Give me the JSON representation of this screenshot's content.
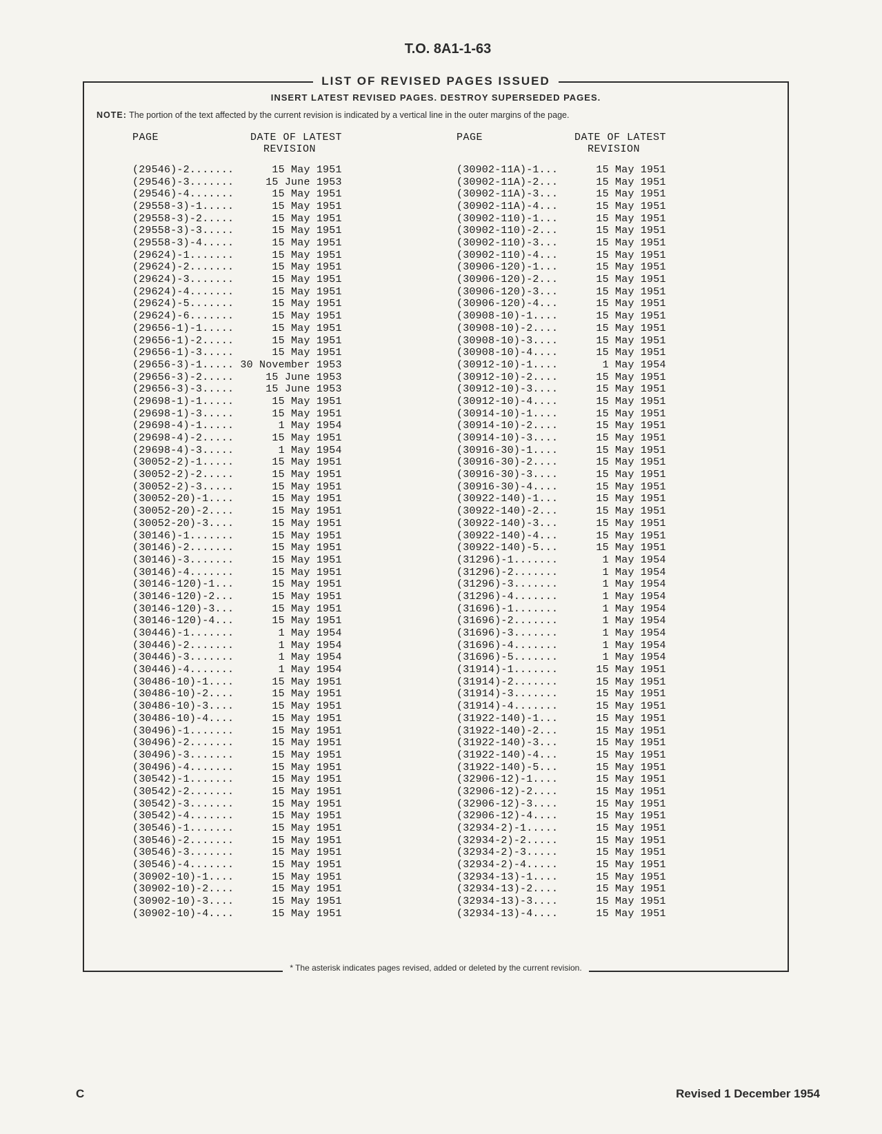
{
  "doc_id": "T.O. 8A1-1-63",
  "box_title": "LIST OF REVISED PAGES ISSUED",
  "subtitle": "INSERT LATEST REVISED PAGES. DESTROY SUPERSEDED PAGES.",
  "note_label": "NOTE:",
  "note_text": "The portion of the text affected by the current revision is indicated by a vertical line in the outer margins of the page.",
  "col_header_page": "PAGE",
  "col_header_date": "DATE OF LATEST\nREVISION",
  "footnote": "* The asterisk indicates pages revised, added or deleted by the current revision.",
  "page_letter": "C",
  "revised": "Revised 1 December 1954",
  "left_rows": [
    {
      "p": "(29546)-2",
      "d": "15 May 1951"
    },
    {
      "p": "(29546)-3",
      "d": "15 June 1953"
    },
    {
      "p": "(29546)-4",
      "d": "15 May 1951"
    },
    {
      "p": "(29558-3)-1",
      "d": "15 May 1951"
    },
    {
      "p": "(29558-3)-2",
      "d": "15 May 1951"
    },
    {
      "p": "(29558-3)-3",
      "d": "15 May 1951"
    },
    {
      "p": "(29558-3)-4",
      "d": "15 May 1951"
    },
    {
      "p": "(29624)-1",
      "d": "15 May 1951"
    },
    {
      "p": "(29624)-2",
      "d": "15 May 1951"
    },
    {
      "p": "(29624)-3",
      "d": "15 May 1951"
    },
    {
      "p": "(29624)-4",
      "d": "15 May 1951"
    },
    {
      "p": "(29624)-5",
      "d": "15 May 1951"
    },
    {
      "p": "(29624)-6",
      "d": "15 May 1951"
    },
    {
      "p": "(29656-1)-1",
      "d": "15 May 1951"
    },
    {
      "p": "(29656-1)-2",
      "d": "15 May 1951"
    },
    {
      "p": "(29656-1)-3",
      "d": "15 May 1951"
    },
    {
      "p": "(29656-3)-1",
      "d": "30 November 1953"
    },
    {
      "p": "(29656-3)-2",
      "d": "15 June 1953"
    },
    {
      "p": "(29656-3)-3",
      "d": "15 June 1953"
    },
    {
      "p": "(29698-1)-1",
      "d": "15 May 1951"
    },
    {
      "p": "(29698-1)-3",
      "d": "15 May 1951"
    },
    {
      "p": "(29698-4)-1",
      "d": "1 May 1954"
    },
    {
      "p": "(29698-4)-2",
      "d": "15 May 1951"
    },
    {
      "p": "(29698-4)-3",
      "d": "1 May 1954"
    },
    {
      "p": "(30052-2)-1",
      "d": "15 May 1951"
    },
    {
      "p": "(30052-2)-2",
      "d": "15 May 1951"
    },
    {
      "p": "(30052-2)-3",
      "d": "15 May 1951"
    },
    {
      "p": "(30052-20)-1",
      "d": "15 May 1951"
    },
    {
      "p": "(30052-20)-2",
      "d": "15 May 1951"
    },
    {
      "p": "(30052-20)-3",
      "d": "15 May 1951"
    },
    {
      "p": "(30146)-1",
      "d": "15 May 1951"
    },
    {
      "p": "(30146)-2",
      "d": "15 May 1951"
    },
    {
      "p": "(30146)-3",
      "d": "15 May 1951"
    },
    {
      "p": "(30146)-4",
      "d": "15 May 1951"
    },
    {
      "p": "(30146-120)-1",
      "d": "15 May 1951"
    },
    {
      "p": "(30146-120)-2",
      "d": "15 May 1951"
    },
    {
      "p": "(30146-120)-3",
      "d": "15 May 1951"
    },
    {
      "p": "(30146-120)-4",
      "d": "15 May 1951"
    },
    {
      "p": "(30446)-1",
      "d": "1 May 1954"
    },
    {
      "p": "(30446)-2",
      "d": "1 May 1954"
    },
    {
      "p": "(30446)-3",
      "d": "1 May 1954"
    },
    {
      "p": "(30446)-4",
      "d": "1 May 1954"
    },
    {
      "p": "(30486-10)-1",
      "d": "15 May 1951"
    },
    {
      "p": "(30486-10)-2",
      "d": "15 May 1951"
    },
    {
      "p": "(30486-10)-3",
      "d": "15 May 1951"
    },
    {
      "p": "(30486-10)-4",
      "d": "15 May 1951"
    },
    {
      "p": "(30496)-1",
      "d": "15 May 1951"
    },
    {
      "p": "(30496)-2",
      "d": "15 May 1951"
    },
    {
      "p": "(30496)-3",
      "d": "15 May 1951"
    },
    {
      "p": "(30496)-4",
      "d": "15 May 1951"
    },
    {
      "p": "(30542)-1",
      "d": "15 May 1951"
    },
    {
      "p": "(30542)-2",
      "d": "15 May 1951"
    },
    {
      "p": "(30542)-3",
      "d": "15 May 1951"
    },
    {
      "p": "(30542)-4",
      "d": "15 May 1951"
    },
    {
      "p": "(30546)-1",
      "d": "15 May 1951"
    },
    {
      "p": "(30546)-2",
      "d": "15 May 1951"
    },
    {
      "p": "(30546)-3",
      "d": "15 May 1951"
    },
    {
      "p": "(30546)-4",
      "d": "15 May 1951"
    },
    {
      "p": "(30902-10)-1",
      "d": "15 May 1951"
    },
    {
      "p": "(30902-10)-2",
      "d": "15 May 1951"
    },
    {
      "p": "(30902-10)-3",
      "d": "15 May 1951"
    },
    {
      "p": "(30902-10)-4",
      "d": "15 May 1951"
    }
  ],
  "right_rows": [
    {
      "p": "(30902-11A)-1",
      "d": "15 May 1951"
    },
    {
      "p": "(30902-11A)-2",
      "d": "15 May 1951"
    },
    {
      "p": "(30902-11A)-3",
      "d": "15 May 1951"
    },
    {
      "p": "(30902-11A)-4",
      "d": "15 May 1951"
    },
    {
      "p": "(30902-110)-1",
      "d": "15 May 1951"
    },
    {
      "p": "(30902-110)-2",
      "d": "15 May 1951"
    },
    {
      "p": "(30902-110)-3",
      "d": "15 May 1951"
    },
    {
      "p": "(30902-110)-4",
      "d": "15 May 1951"
    },
    {
      "p": "(30906-120)-1",
      "d": "15 May 1951"
    },
    {
      "p": "(30906-120)-2",
      "d": "15 May 1951"
    },
    {
      "p": "(30906-120)-3",
      "d": "15 May 1951"
    },
    {
      "p": "(30906-120)-4",
      "d": "15 May 1951"
    },
    {
      "p": "(30908-10)-1",
      "d": "15 May 1951"
    },
    {
      "p": "(30908-10)-2",
      "d": "15 May 1951"
    },
    {
      "p": "(30908-10)-3",
      "d": "15 May 1951"
    },
    {
      "p": "(30908-10)-4",
      "d": "15 May 1951"
    },
    {
      "p": "(30912-10)-1",
      "d": "1 May 1954"
    },
    {
      "p": "(30912-10)-2",
      "d": "15 May 1951"
    },
    {
      "p": "(30912-10)-3",
      "d": "15 May 1951"
    },
    {
      "p": "(30912-10)-4",
      "d": "15 May 1951"
    },
    {
      "p": "(30914-10)-1",
      "d": "15 May 1951"
    },
    {
      "p": "(30914-10)-2",
      "d": "15 May 1951"
    },
    {
      "p": "(30914-10)-3",
      "d": "15 May 1951"
    },
    {
      "p": "(30916-30)-1",
      "d": "15 May 1951"
    },
    {
      "p": "(30916-30)-2",
      "d": "15 May 1951"
    },
    {
      "p": "(30916-30)-3",
      "d": "15 May 1951"
    },
    {
      "p": "(30916-30)-4",
      "d": "15 May 1951"
    },
    {
      "p": "(30922-140)-1",
      "d": "15 May 1951"
    },
    {
      "p": "(30922-140)-2",
      "d": "15 May 1951"
    },
    {
      "p": "(30922-140)-3",
      "d": "15 May 1951"
    },
    {
      "p": "(30922-140)-4",
      "d": "15 May 1951"
    },
    {
      "p": "(30922-140)-5",
      "d": "15 May 1951"
    },
    {
      "p": "(31296)-1",
      "d": "1 May 1954"
    },
    {
      "p": "(31296)-2",
      "d": "1 May 1954"
    },
    {
      "p": "(31296)-3",
      "d": "1 May 1954"
    },
    {
      "p": "(31296)-4",
      "d": "1 May 1954"
    },
    {
      "p": "(31696)-1",
      "d": "1 May 1954"
    },
    {
      "p": "(31696)-2",
      "d": "1 May 1954"
    },
    {
      "p": "(31696)-3",
      "d": "1 May 1954"
    },
    {
      "p": "(31696)-4",
      "d": "1 May 1954"
    },
    {
      "p": "(31696)-5",
      "d": "1 May 1954"
    },
    {
      "p": "(31914)-1",
      "d": "15 May 1951"
    },
    {
      "p": "(31914)-2",
      "d": "15 May 1951"
    },
    {
      "p": "(31914)-3",
      "d": "15 May 1951"
    },
    {
      "p": "(31914)-4",
      "d": "15 May 1951"
    },
    {
      "p": "(31922-140)-1",
      "d": "15 May 1951"
    },
    {
      "p": "(31922-140)-2",
      "d": "15 May 1951"
    },
    {
      "p": "(31922-140)-3",
      "d": "15 May 1951"
    },
    {
      "p": "(31922-140)-4",
      "d": "15 May 1951"
    },
    {
      "p": "(31922-140)-5",
      "d": "15 May 1951"
    },
    {
      "p": "(32906-12)-1",
      "d": "15 May 1951"
    },
    {
      "p": "(32906-12)-2",
      "d": "15 May 1951"
    },
    {
      "p": "(32906-12)-3",
      "d": "15 May 1951"
    },
    {
      "p": "(32906-12)-4",
      "d": "15 May 1951"
    },
    {
      "p": "(32934-2)-1",
      "d": "15 May 1951"
    },
    {
      "p": "(32934-2)-2",
      "d": "15 May 1951"
    },
    {
      "p": "(32934-2)-3",
      "d": "15 May 1951"
    },
    {
      "p": "(32934-2)-4",
      "d": "15 May 1951"
    },
    {
      "p": "(32934-13)-1",
      "d": "15 May 1951"
    },
    {
      "p": "(32934-13)-2",
      "d": "15 May 1951"
    },
    {
      "p": "(32934-13)-3",
      "d": "15 May 1951"
    },
    {
      "p": "(32934-13)-4",
      "d": "15 May 1951"
    }
  ],
  "layout": {
    "row_total_width": 32,
    "date_align_right": true,
    "leader_char": "."
  }
}
